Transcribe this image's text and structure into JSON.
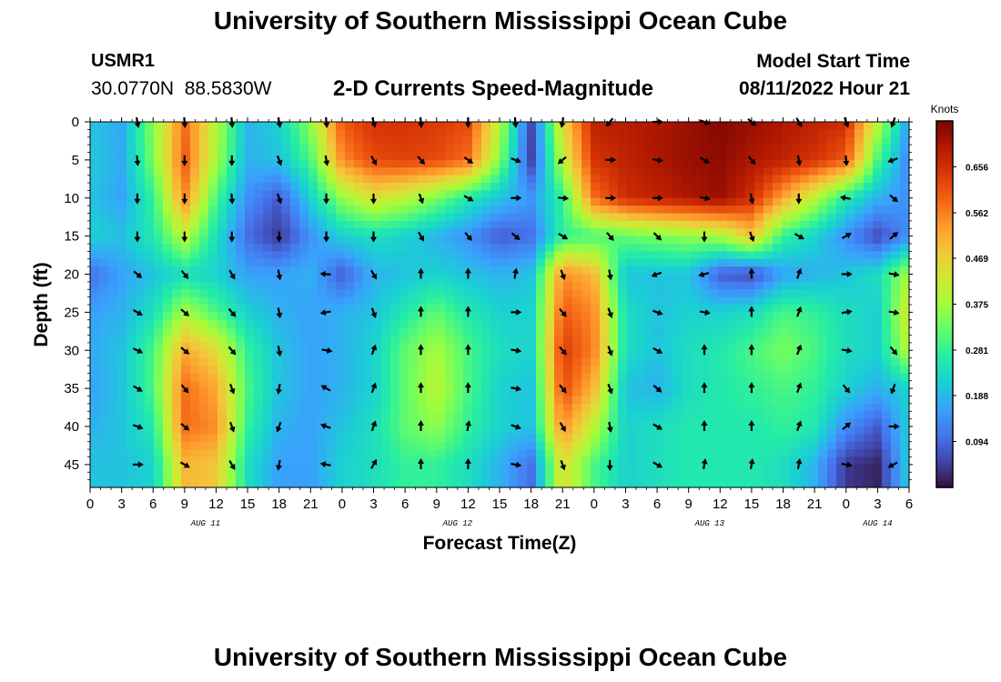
{
  "header": {
    "title": "University of Southern Mississippi Ocean Cube",
    "station_id": "USMR1",
    "coordinates": "30.0770N  88.5830W",
    "subtitle": "2-D Currents Speed-Magnitude",
    "model_start_label": "Model Start Time",
    "model_start_value": "08/11/2022 Hour 21"
  },
  "footer": {
    "title": "University of Southern Mississippi Ocean Cube"
  },
  "colors": {
    "scale": [
      "#30123b",
      "#4145ab",
      "#4675ed",
      "#39a2fc",
      "#1bcfd4",
      "#24eca6",
      "#61fc6c",
      "#a4fc3b",
      "#d1e834",
      "#f3c63a",
      "#fe9b2d",
      "#f36315",
      "#d93806",
      "#b11901",
      "#7a0403"
    ],
    "arrow": "#000000"
  },
  "chart_data": {
    "type": "heatmap",
    "title": "2-D Currents Speed-Magnitude",
    "xlabel": "Forecast Time(Z)",
    "ylabel": "Depth (ft)",
    "x_ticks": [
      "0",
      "3",
      "6",
      "9",
      "12",
      "15",
      "18",
      "21",
      "0",
      "3",
      "6",
      "9",
      "12",
      "15",
      "18",
      "21",
      "0",
      "3",
      "6",
      "9",
      "12",
      "15",
      "18",
      "21",
      "0",
      "3",
      "6"
    ],
    "x_range_hours": [
      0,
      78
    ],
    "date_labels": [
      {
        "label": "AUG 11",
        "hour": 11
      },
      {
        "label": "AUG 12",
        "hour": 35
      },
      {
        "label": "AUG 13",
        "hour": 59
      },
      {
        "label": "AUG 14",
        "hour": 75
      }
    ],
    "y_ticks": [
      0,
      5,
      10,
      15,
      20,
      25,
      30,
      35,
      40,
      45
    ],
    "ylim": [
      0,
      48
    ],
    "colorbar": {
      "unit": "Knots",
      "ticks": [
        "0.656",
        "0.562",
        "0.469",
        "0.375",
        "0.281",
        "0.188",
        "0.094"
      ],
      "range": [
        0,
        0.75
      ]
    },
    "speed_field": {
      "description": "current speed (knots) at depth rows 0..45 ft every 5 ft, columns every 3 forecast hours 0..78",
      "depths": [
        0,
        5,
        10,
        15,
        20,
        25,
        30,
        35,
        40,
        45
      ],
      "hours": [
        0,
        3,
        6,
        9,
        12,
        15,
        18,
        21,
        24,
        27,
        30,
        33,
        36,
        39,
        42,
        45,
        48,
        51,
        54,
        57,
        60,
        63,
        66,
        69,
        72,
        75,
        78
      ],
      "rows": [
        [
          0.2,
          0.17,
          0.35,
          0.58,
          0.4,
          0.18,
          0.22,
          0.36,
          0.6,
          0.65,
          0.65,
          0.64,
          0.62,
          0.4,
          0.06,
          0.45,
          0.68,
          0.69,
          0.7,
          0.72,
          0.74,
          0.72,
          0.7,
          0.68,
          0.66,
          0.4,
          0.15
        ],
        [
          0.21,
          0.17,
          0.34,
          0.6,
          0.38,
          0.18,
          0.2,
          0.3,
          0.55,
          0.62,
          0.63,
          0.62,
          0.58,
          0.35,
          0.05,
          0.4,
          0.65,
          0.68,
          0.7,
          0.72,
          0.73,
          0.7,
          0.68,
          0.65,
          0.6,
          0.3,
          0.12
        ],
        [
          0.2,
          0.16,
          0.28,
          0.55,
          0.3,
          0.14,
          0.08,
          0.22,
          0.36,
          0.44,
          0.4,
          0.34,
          0.26,
          0.2,
          0.15,
          0.28,
          0.58,
          0.66,
          0.68,
          0.7,
          0.72,
          0.66,
          0.52,
          0.4,
          0.26,
          0.18,
          0.14
        ],
        [
          0.22,
          0.2,
          0.26,
          0.4,
          0.24,
          0.1,
          0.04,
          0.14,
          0.22,
          0.24,
          0.22,
          0.18,
          0.14,
          0.08,
          0.1,
          0.28,
          0.3,
          0.32,
          0.34,
          0.36,
          0.38,
          0.48,
          0.28,
          0.22,
          0.14,
          0.06,
          0.14
        ],
        [
          0.1,
          0.16,
          0.2,
          0.24,
          0.22,
          0.16,
          0.16,
          0.18,
          0.08,
          0.18,
          0.2,
          0.22,
          0.2,
          0.18,
          0.2,
          0.55,
          0.5,
          0.2,
          0.2,
          0.2,
          0.08,
          0.06,
          0.16,
          0.18,
          0.2,
          0.24,
          0.38
        ],
        [
          0.16,
          0.18,
          0.24,
          0.38,
          0.3,
          0.22,
          0.18,
          0.16,
          0.18,
          0.2,
          0.26,
          0.32,
          0.26,
          0.22,
          0.22,
          0.6,
          0.55,
          0.24,
          0.2,
          0.22,
          0.22,
          0.24,
          0.3,
          0.28,
          0.24,
          0.22,
          0.44
        ],
        [
          0.17,
          0.2,
          0.3,
          0.52,
          0.45,
          0.28,
          0.2,
          0.16,
          0.18,
          0.22,
          0.32,
          0.38,
          0.3,
          0.24,
          0.22,
          0.64,
          0.56,
          0.24,
          0.2,
          0.24,
          0.26,
          0.3,
          0.34,
          0.3,
          0.24,
          0.22,
          0.4
        ],
        [
          0.16,
          0.2,
          0.3,
          0.58,
          0.52,
          0.3,
          0.2,
          0.16,
          0.18,
          0.22,
          0.32,
          0.4,
          0.3,
          0.22,
          0.2,
          0.62,
          0.5,
          0.2,
          0.18,
          0.24,
          0.26,
          0.28,
          0.3,
          0.28,
          0.22,
          0.18,
          0.22
        ],
        [
          0.18,
          0.2,
          0.26,
          0.58,
          0.55,
          0.28,
          0.18,
          0.16,
          0.2,
          0.24,
          0.32,
          0.36,
          0.28,
          0.22,
          0.2,
          0.55,
          0.4,
          0.22,
          0.24,
          0.26,
          0.26,
          0.26,
          0.28,
          0.26,
          0.14,
          0.08,
          0.22
        ],
        [
          0.2,
          0.2,
          0.22,
          0.5,
          0.48,
          0.24,
          0.16,
          0.16,
          0.22,
          0.24,
          0.28,
          0.28,
          0.24,
          0.18,
          0.1,
          0.45,
          0.3,
          0.22,
          0.24,
          0.26,
          0.26,
          0.26,
          0.24,
          0.18,
          0.04,
          0.02,
          0.22
        ]
      ]
    },
    "arrow_field": {
      "description": "current direction arrows (compass degrees toward, 0 = up/north) at depths 0..45 ft every 5 ft, at forecast hours listed",
      "hours": [
        4.5,
        9,
        13.5,
        18,
        22.5,
        27,
        31.5,
        36,
        40.5,
        45,
        49.5,
        54,
        58.5,
        63,
        67.5,
        72,
        76.5
      ],
      "rows": [
        [
          170,
          175,
          175,
          170,
          175,
          165,
          175,
          180,
          175,
          190,
          220,
          90,
          110,
          130,
          150,
          160,
          200
        ],
        [
          175,
          180,
          180,
          160,
          170,
          150,
          140,
          125,
          110,
          230,
          90,
          100,
          120,
          140,
          170,
          175,
          250
        ],
        [
          180,
          180,
          175,
          160,
          180,
          180,
          160,
          120,
          90,
          95,
          90,
          90,
          100,
          170,
          180,
          280,
          130
        ],
        [
          180,
          180,
          180,
          180,
          180,
          180,
          150,
          140,
          130,
          120,
          140,
          135,
          180,
          160,
          120,
          60,
          50
        ],
        [
          130,
          140,
          150,
          170,
          275,
          150,
          0,
          0,
          10,
          160,
          170,
          250,
          255,
          0,
          20,
          90,
          100
        ],
        [
          120,
          130,
          140,
          170,
          260,
          160,
          0,
          0,
          90,
          140,
          160,
          110,
          100,
          0,
          20,
          80,
          100
        ],
        [
          115,
          130,
          140,
          170,
          100,
          20,
          0,
          0,
          100,
          140,
          160,
          120,
          0,
          0,
          20,
          100,
          140
        ],
        [
          120,
          140,
          160,
          190,
          300,
          20,
          0,
          0,
          100,
          140,
          160,
          130,
          0,
          0,
          20,
          140,
          200
        ],
        [
          110,
          130,
          160,
          200,
          290,
          20,
          0,
          10,
          110,
          150,
          170,
          120,
          0,
          0,
          20,
          50,
          90
        ],
        [
          90,
          120,
          150,
          190,
          280,
          30,
          0,
          0,
          100,
          160,
          180,
          120,
          10,
          10,
          10,
          100,
          240
        ]
      ]
    }
  }
}
